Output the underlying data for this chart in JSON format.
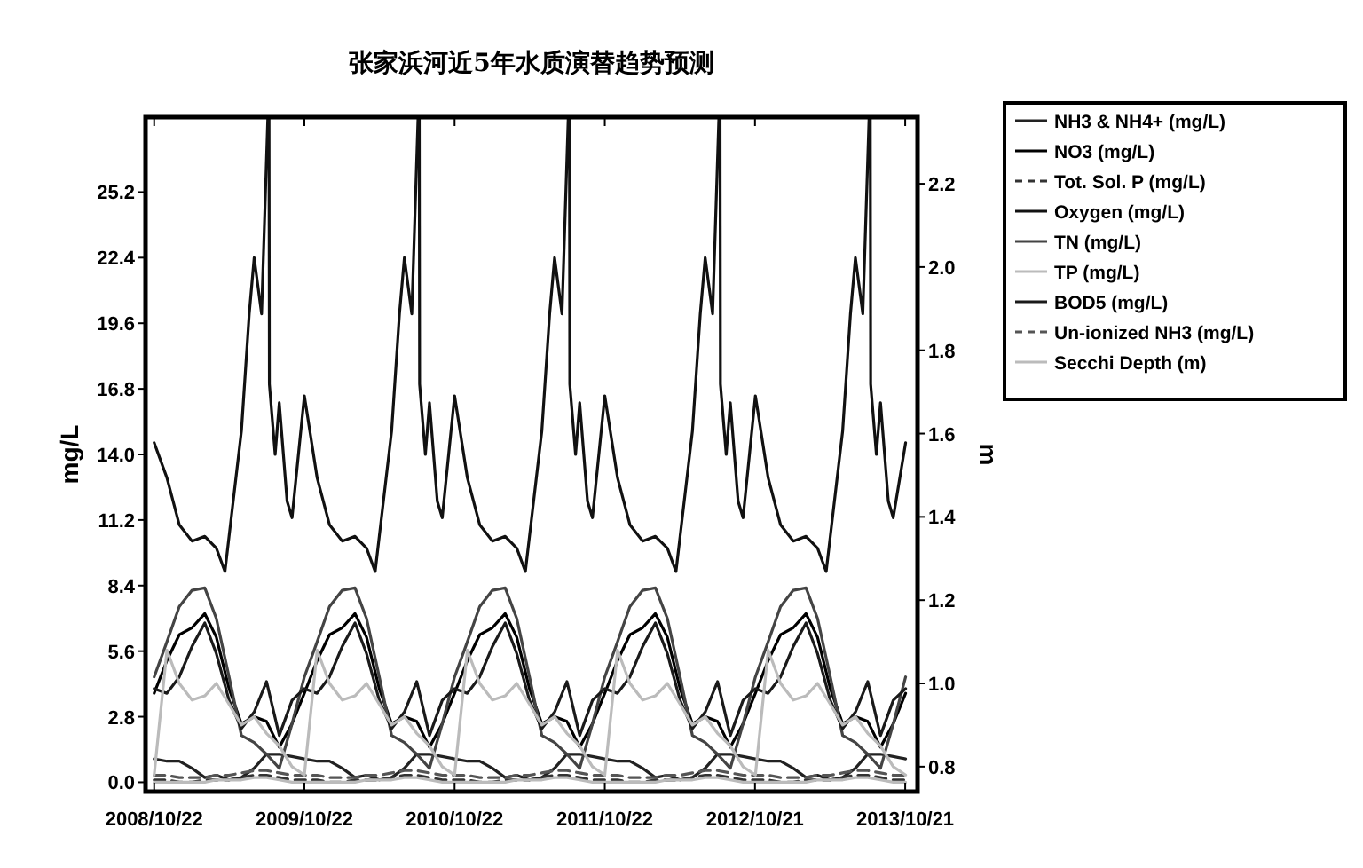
{
  "chart_data": {
    "type": "line",
    "title": "张家浜河近5年水质演替趋势预测",
    "ylabel": "mg/L",
    "y2label": "m",
    "legend": "right",
    "xlim": [
      "2008-10-01",
      "2013-11-20"
    ],
    "xticks": [
      {
        "value": "2008-10-22",
        "label": "2008/10/22"
      },
      {
        "value": "2009-10-22",
        "label": "2009/10/22"
      },
      {
        "value": "2010-10-22",
        "label": "2010/10/22"
      },
      {
        "value": "2011-10-22",
        "label": "2011/10/22"
      },
      {
        "value": "2012-10-21",
        "label": "2012/10/21"
      },
      {
        "value": "2013-10-21",
        "label": "2013/10/21"
      }
    ],
    "ylim": [
      -0.4,
      28.4
    ],
    "yticks": [
      {
        "value": 0,
        "label": "0.0"
      },
      2.8,
      5.6,
      8.4,
      11.2,
      {
        "value": 14,
        "label": "14.0"
      },
      16.8,
      19.6,
      22.4,
      25.2
    ],
    "y2lim": [
      0.74,
      2.36
    ],
    "y2ticks": [
      0.8,
      {
        "value": 1,
        "label": "1.0"
      },
      1.2,
      1.4,
      1.6,
      1.8,
      {
        "value": 2,
        "label": "2.0"
      },
      2.2
    ],
    "x": [
      "2008-10-22",
      "2008-11-22",
      "2008-12-22",
      "2009-01-22",
      "2009-02-22",
      "2009-03-22",
      "2009-04-22",
      "2009-05-22",
      "2009-06-22",
      "2009-07-22",
      "2009-08-22",
      "2009-09-22",
      "2009-10-22",
      "2009-11-22",
      "2009-12-22",
      "2010-01-22",
      "2010-02-22",
      "2010-03-22",
      "2010-04-22",
      "2010-05-22",
      "2010-06-22",
      "2010-07-22",
      "2010-08-22",
      "2010-09-22",
      "2010-10-22",
      "2010-11-22",
      "2010-12-22",
      "2011-01-22",
      "2011-02-22",
      "2011-03-22",
      "2011-04-22",
      "2011-05-22",
      "2011-06-22",
      "2011-07-22",
      "2011-08-22",
      "2011-09-22",
      "2011-10-22",
      "2011-11-22",
      "2011-12-22",
      "2012-01-22",
      "2012-02-22",
      "2012-03-22",
      "2012-04-22",
      "2012-05-22",
      "2012-06-22",
      "2012-07-22",
      "2012-08-22",
      "2012-09-22",
      "2012-10-22",
      "2012-11-22",
      "2012-12-22",
      "2013-01-22",
      "2013-02-22",
      "2013-03-22",
      "2013-04-22",
      "2013-05-22",
      "2013-06-22",
      "2013-07-22",
      "2013-08-22",
      "2013-09-22",
      "2013-10-22"
    ],
    "series": [
      {
        "name": "NH3 & NH4+ (mg/L)",
        "color": "#222222",
        "values": [
          1.0,
          0.9,
          0.9,
          0.6,
          0.2,
          0.3,
          0.1,
          0.2,
          0.6,
          1.2,
          1.2,
          1.1,
          1.0,
          0.9,
          0.9,
          0.6,
          0.2,
          0.3,
          0.1,
          0.2,
          0.6,
          1.2,
          1.2,
          1.1,
          1.0,
          0.9,
          0.9,
          0.6,
          0.2,
          0.3,
          0.1,
          0.2,
          0.6,
          1.2,
          1.2,
          1.1,
          1.0,
          0.9,
          0.9,
          0.6,
          0.2,
          0.3,
          0.1,
          0.2,
          0.6,
          1.2,
          1.2,
          1.1,
          1.0,
          0.9,
          0.9,
          0.6,
          0.2,
          0.3,
          0.1,
          0.2,
          0.6,
          1.2,
          1.2,
          1.1,
          1.0
        ]
      },
      {
        "name": "NO3 (mg/L)",
        "color": "#000000",
        "values": [
          3.8,
          5.2,
          6.3,
          6.6,
          7.2,
          6.2,
          4.0,
          2.5,
          2.8,
          2.6,
          1.5,
          2.5,
          3.8,
          5.2,
          6.3,
          6.6,
          7.2,
          6.2,
          4.0,
          2.5,
          2.8,
          2.6,
          1.5,
          2.5,
          3.8,
          5.2,
          6.3,
          6.6,
          7.2,
          6.2,
          4.0,
          2.5,
          2.8,
          2.6,
          1.5,
          2.5,
          3.8,
          5.2,
          6.3,
          6.6,
          7.2,
          6.2,
          4.0,
          2.5,
          2.8,
          2.6,
          1.5,
          2.5,
          3.8,
          5.2,
          6.3,
          6.6,
          7.2,
          6.2,
          4.0,
          2.5,
          2.8,
          2.6,
          1.5,
          2.5,
          3.8
        ]
      },
      {
        "name": "Tot. Sol. P (mg/L)",
        "color": "#333333",
        "line_style": "dashed",
        "values": [
          0.1,
          0.1,
          0.0,
          0.0,
          0.1,
          0.1,
          0.1,
          0.2,
          0.3,
          0.3,
          0.2,
          0.1,
          0.1,
          0.1,
          0.0,
          0.0,
          0.1,
          0.1,
          0.1,
          0.2,
          0.3,
          0.3,
          0.2,
          0.1,
          0.1,
          0.1,
          0.0,
          0.0,
          0.1,
          0.1,
          0.1,
          0.2,
          0.3,
          0.3,
          0.2,
          0.1,
          0.1,
          0.1,
          0.0,
          0.0,
          0.1,
          0.1,
          0.1,
          0.2,
          0.3,
          0.3,
          0.2,
          0.1,
          0.1,
          0.1,
          0.0,
          0.0,
          0.1,
          0.1,
          0.1,
          0.2,
          0.3,
          0.3,
          0.2,
          0.1,
          0.1
        ]
      },
      {
        "name": "Oxygen (mg/L)",
        "color": "#111111",
        "x": [
          "2008-10-22",
          "2008-11-22",
          "2008-12-22",
          "2009-01-22",
          "2009-02-22",
          "2009-03-22",
          "2009-04-12",
          "2009-04-22",
          "2009-05-22",
          "2009-06-10",
          "2009-06-22",
          "2009-07-10",
          "2009-07-28",
          "2009-07-29",
          "2009-08-12",
          "2009-08-22",
          "2009-09-10",
          "2009-09-22",
          "2009-10-22",
          "2009-11-22",
          "2009-12-22",
          "2010-01-22",
          "2010-02-22",
          "2010-03-22",
          "2010-04-12",
          "2010-04-22",
          "2010-05-22",
          "2010-06-10",
          "2010-06-22",
          "2010-07-10",
          "2010-07-28",
          "2010-07-29",
          "2010-08-12",
          "2010-08-22",
          "2010-09-10",
          "2010-09-22",
          "2010-10-22",
          "2010-11-22",
          "2010-12-22",
          "2011-01-22",
          "2011-02-22",
          "2011-03-22",
          "2011-04-12",
          "2011-04-22",
          "2011-05-22",
          "2011-06-10",
          "2011-06-22",
          "2011-07-10",
          "2011-07-28",
          "2011-07-29",
          "2011-08-12",
          "2011-08-22",
          "2011-09-10",
          "2011-09-22",
          "2011-10-22",
          "2011-11-22",
          "2011-12-22",
          "2012-01-22",
          "2012-02-22",
          "2012-03-22",
          "2012-04-12",
          "2012-04-22",
          "2012-05-22",
          "2012-06-10",
          "2012-06-22",
          "2012-07-10",
          "2012-07-28",
          "2012-07-29",
          "2012-08-12",
          "2012-08-22",
          "2012-09-10",
          "2012-09-22",
          "2012-10-22",
          "2012-11-22",
          "2012-12-22",
          "2013-01-22",
          "2013-02-22",
          "2013-03-22",
          "2013-04-12",
          "2013-04-22",
          "2013-05-22",
          "2013-06-10",
          "2013-06-22",
          "2013-07-10",
          "2013-07-28",
          "2013-07-29",
          "2013-08-12",
          "2013-08-22",
          "2013-09-10",
          "2013-09-22",
          "2013-10-22"
        ],
        "values": [
          14.5,
          13.0,
          11.0,
          10.3,
          10.5,
          10.0,
          9.0,
          10.5,
          15.0,
          20.0,
          22.4,
          20.0,
          null,
          17.0,
          14.0,
          16.2,
          12.0,
          11.3,
          16.5,
          13.0,
          11.0,
          10.3,
          10.5,
          10.0,
          9.0,
          10.5,
          15.0,
          20.0,
          22.4,
          20.0,
          null,
          17.0,
          14.0,
          16.2,
          12.0,
          11.3,
          16.5,
          13.0,
          11.0,
          10.3,
          10.5,
          10.0,
          9.0,
          10.5,
          15.0,
          20.0,
          22.4,
          20.0,
          null,
          17.0,
          14.0,
          16.2,
          12.0,
          11.3,
          16.5,
          13.0,
          11.0,
          10.3,
          10.5,
          10.0,
          9.0,
          10.5,
          15.0,
          20.0,
          22.4,
          20.0,
          null,
          17.0,
          14.0,
          16.2,
          12.0,
          11.3,
          16.5,
          13.0,
          11.0,
          10.3,
          10.5,
          10.0,
          9.0,
          10.5,
          15.0,
          20.0,
          22.4,
          20.0,
          null,
          17.0,
          14.0,
          16.2,
          12.0,
          11.3,
          14.5
        ]
      },
      {
        "name": "TN (mg/L)",
        "color": "#444444",
        "values": [
          4.5,
          6.0,
          7.5,
          8.2,
          8.3,
          7.0,
          4.5,
          2.0,
          1.7,
          1.2,
          0.6,
          2.5,
          4.5,
          6.0,
          7.5,
          8.2,
          8.3,
          7.0,
          4.5,
          2.0,
          1.7,
          1.2,
          0.6,
          2.5,
          4.5,
          6.0,
          7.5,
          8.2,
          8.3,
          7.0,
          4.5,
          2.0,
          1.7,
          1.2,
          0.6,
          2.5,
          4.5,
          6.0,
          7.5,
          8.2,
          8.3,
          7.0,
          4.5,
          2.0,
          1.7,
          1.2,
          0.6,
          2.5,
          4.5,
          6.0,
          7.5,
          8.2,
          8.3,
          7.0,
          4.5,
          2.0,
          1.7,
          1.2,
          0.6,
          2.5,
          4.5
        ]
      },
      {
        "name": "TP (mg/L)",
        "color": "#bbbbbb",
        "values": [
          0.0,
          0.0,
          0.0,
          0.0,
          0.0,
          0.1,
          0.1,
          0.1,
          0.2,
          0.2,
          0.1,
          0.0,
          0.0,
          0.0,
          0.0,
          0.0,
          0.0,
          0.1,
          0.1,
          0.1,
          0.2,
          0.2,
          0.1,
          0.0,
          0.0,
          0.0,
          0.0,
          0.0,
          0.0,
          0.1,
          0.1,
          0.1,
          0.2,
          0.2,
          0.1,
          0.0,
          0.0,
          0.0,
          0.0,
          0.0,
          0.0,
          0.1,
          0.1,
          0.1,
          0.2,
          0.2,
          0.1,
          0.0,
          0.0,
          0.0,
          0.0,
          0.0,
          0.0,
          0.1,
          0.1,
          0.1,
          0.2,
          0.2,
          0.1,
          0.0,
          0.0
        ]
      },
      {
        "name": "BOD5 (mg/L)",
        "color": "#1a1a1a",
        "values": [
          4.0,
          3.8,
          4.5,
          5.8,
          6.8,
          5.5,
          3.5,
          2.3,
          3.0,
          4.3,
          2.0,
          3.5,
          4.0,
          3.8,
          4.5,
          5.8,
          6.8,
          5.5,
          3.5,
          2.3,
          3.0,
          4.3,
          2.0,
          3.5,
          4.0,
          3.8,
          4.5,
          5.8,
          6.8,
          5.5,
          3.5,
          2.3,
          3.0,
          4.3,
          2.0,
          3.5,
          4.0,
          3.8,
          4.5,
          5.8,
          6.8,
          5.5,
          3.5,
          2.3,
          3.0,
          4.3,
          2.0,
          3.5,
          4.0,
          3.8,
          4.5,
          5.8,
          6.8,
          5.5,
          3.5,
          2.3,
          3.0,
          4.3,
          2.0,
          3.5,
          4.0
        ]
      },
      {
        "name": "Un-ionized NH3 (mg/L)",
        "color": "#555555",
        "line_style": "dashed",
        "values": [
          0.3,
          0.3,
          0.2,
          0.2,
          0.2,
          0.3,
          0.3,
          0.4,
          0.5,
          0.5,
          0.4,
          0.3,
          0.3,
          0.3,
          0.2,
          0.2,
          0.2,
          0.3,
          0.3,
          0.4,
          0.5,
          0.5,
          0.4,
          0.3,
          0.3,
          0.3,
          0.2,
          0.2,
          0.2,
          0.3,
          0.3,
          0.4,
          0.5,
          0.5,
          0.4,
          0.3,
          0.3,
          0.3,
          0.2,
          0.2,
          0.2,
          0.3,
          0.3,
          0.4,
          0.5,
          0.5,
          0.4,
          0.3,
          0.3,
          0.3,
          0.2,
          0.2,
          0.2,
          0.3,
          0.3,
          0.4,
          0.5,
          0.5,
          0.4,
          0.3,
          0.3
        ]
      },
      {
        "name": "Secchi Depth (m)",
        "color": "#bbbbbb",
        "axis": "y2",
        "values": [
          0.78,
          1.08,
          1.0,
          0.96,
          0.97,
          1.0,
          0.95,
          0.9,
          0.92,
          0.88,
          0.85,
          0.8,
          0.78,
          1.08,
          1.0,
          0.96,
          0.97,
          1.0,
          0.95,
          0.9,
          0.92,
          0.88,
          0.85,
          0.8,
          0.78,
          1.08,
          1.0,
          0.96,
          0.97,
          1.0,
          0.95,
          0.9,
          0.92,
          0.88,
          0.85,
          0.8,
          0.78,
          1.08,
          1.0,
          0.96,
          0.97,
          1.0,
          0.95,
          0.9,
          0.92,
          0.88,
          0.85,
          0.8,
          0.78,
          1.08,
          1.0,
          0.96,
          0.97,
          1.0,
          0.95,
          0.9,
          0.92,
          0.88,
          0.85,
          0.8,
          0.78
        ]
      }
    ]
  }
}
